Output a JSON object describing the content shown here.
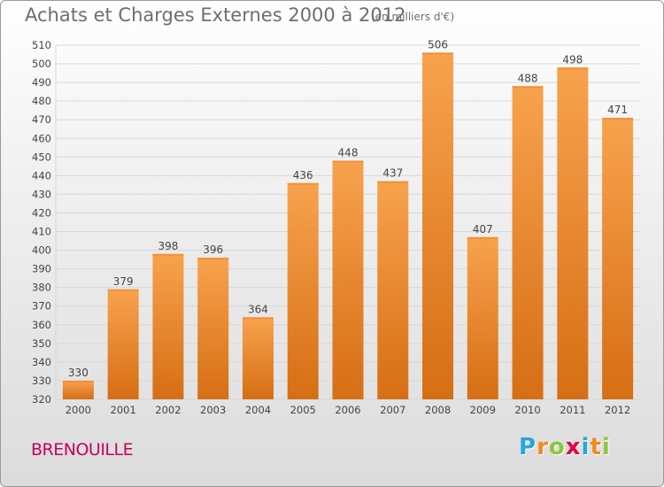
{
  "header": {
    "title": "Achats et Charges Externes 2000 à 2012",
    "unit": "(en milliers d'€)"
  },
  "footer": {
    "commune": "BRENOUILLE",
    "logo_text": "Proxiti",
    "logo_letters": [
      {
        "ch": "P",
        "color": "#2aa6d8"
      },
      {
        "ch": "r",
        "color": "#f08a1c"
      },
      {
        "ch": "o",
        "color": "#8cc63f"
      },
      {
        "ch": "x",
        "color": "#e8003d"
      },
      {
        "ch": "i",
        "color": "#2aa6d8"
      },
      {
        "ch": "t",
        "color": "#f08a1c"
      },
      {
        "ch": "i",
        "color": "#8cc63f"
      }
    ]
  },
  "colors": {
    "bar_top": "#f8a24e",
    "bar_bottom": "#d66e14",
    "grid": "#d7d7d7",
    "axis_text": "#444444",
    "commune": "#c8005a"
  },
  "chart_data": {
    "type": "bar",
    "title": "Achats et Charges Externes 2000 à 2012",
    "subtitle": "(en milliers d'€)",
    "xlabel": "",
    "ylabel": "",
    "categories": [
      "2000",
      "2001",
      "2002",
      "2003",
      "2004",
      "2005",
      "2006",
      "2007",
      "2008",
      "2009",
      "2010",
      "2011",
      "2012"
    ],
    "values": [
      330,
      379,
      398,
      396,
      364,
      436,
      448,
      437,
      506,
      407,
      488,
      498,
      471
    ],
    "ylim": [
      320,
      510
    ],
    "ytick_step": 10,
    "grid": true,
    "legend": "none"
  }
}
